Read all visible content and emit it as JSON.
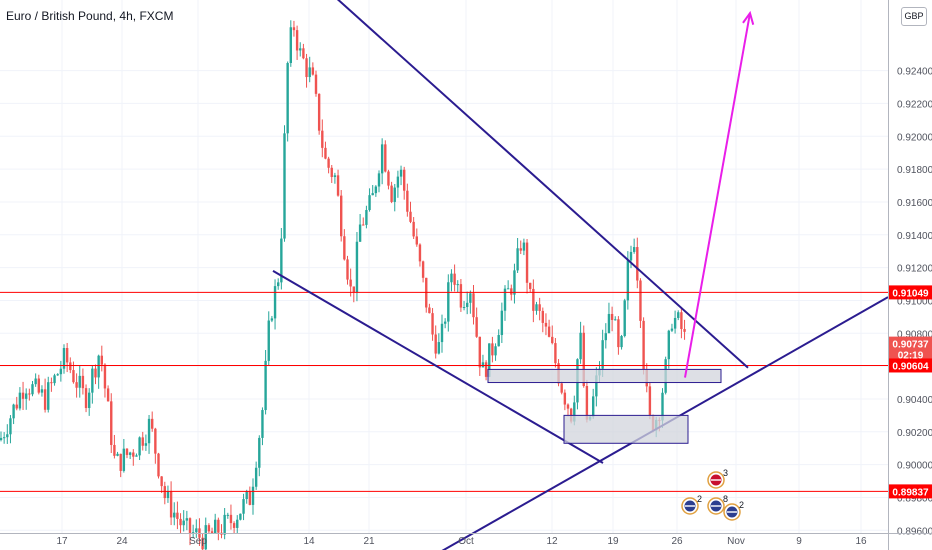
{
  "header": {
    "symbol": "Euro / British Pound",
    "interval": "4h",
    "exchange": "FXCM",
    "currency": "GBP"
  },
  "colors": {
    "up": "#26a69a",
    "down": "#ef5350",
    "trendline": "#2b1c90",
    "level": "#ff0000",
    "projection": "#e91ee9",
    "zone_fill": "#d1d4dc",
    "zone_stroke": "#2b1c90",
    "grid": "#f0f3fa",
    "axis_text": "#50535e"
  },
  "price_labels": [
    {
      "value": 0.91049,
      "text": "0.91049",
      "color": "#ff0000"
    },
    {
      "value": 0.90737,
      "text": "0.90737",
      "color": "#ef5350"
    },
    {
      "value": 0.9067,
      "text": "02:19",
      "color": "#ef5350"
    },
    {
      "value": 0.90604,
      "text": "0.90604",
      "color": "#ff0000"
    },
    {
      "value": 0.89837,
      "text": "0.89837",
      "color": "#ff0000"
    }
  ],
  "event_icons": [
    {
      "label": "3"
    },
    {
      "label": "2"
    },
    {
      "label": "8"
    },
    {
      "label": "2"
    }
  ],
  "chart_data": {
    "type": "candlestick",
    "title": "Euro / British Pound, 4h, FXCM",
    "ylim": [
      0.8948,
      0.9283
    ],
    "y_ticks": [
      0.896,
      0.898,
      0.9,
      0.902,
      0.904,
      0.906,
      0.908,
      0.91,
      0.912,
      0.914,
      0.916,
      0.918,
      0.92,
      0.922,
      0.924
    ],
    "x_ticks": [
      "17",
      "24",
      "Sep",
      "14",
      "21",
      "Oct",
      "12",
      "19",
      "26",
      "Nov",
      "9",
      "16"
    ],
    "grid": true,
    "horizontal_levels": [
      0.91049,
      0.90604,
      0.89837
    ],
    "price_path": [
      [
        0,
        0.9015
      ],
      [
        25,
        0.905
      ],
      [
        45,
        0.904
      ],
      [
        65,
        0.9065
      ],
      [
        85,
        0.904
      ],
      [
        100,
        0.907
      ],
      [
        115,
        0.9
      ],
      [
        135,
        0.901
      ],
      [
        150,
        0.9025
      ],
      [
        165,
        0.898
      ],
      [
        185,
        0.896
      ],
      [
        205,
        0.8955
      ],
      [
        230,
        0.8965
      ],
      [
        250,
        0.898
      ],
      [
        262,
        0.903
      ],
      [
        270,
        0.909
      ],
      [
        280,
        0.912
      ],
      [
        287,
        0.924
      ],
      [
        293,
        0.927
      ],
      [
        300,
        0.925
      ],
      [
        312,
        0.9235
      ],
      [
        325,
        0.9185
      ],
      [
        335,
        0.9175
      ],
      [
        345,
        0.913
      ],
      [
        352,
        0.91
      ],
      [
        360,
        0.9145
      ],
      [
        372,
        0.916
      ],
      [
        382,
        0.9195
      ],
      [
        392,
        0.9165
      ],
      [
        400,
        0.918
      ],
      [
        410,
        0.915
      ],
      [
        420,
        0.912
      ],
      [
        432,
        0.908
      ],
      [
        440,
        0.907
      ],
      [
        452,
        0.912
      ],
      [
        462,
        0.91
      ],
      [
        470,
        0.911
      ],
      [
        482,
        0.9055
      ],
      [
        492,
        0.907
      ],
      [
        505,
        0.91
      ],
      [
        515,
        0.9115
      ],
      [
        522,
        0.914
      ],
      [
        530,
        0.91
      ],
      [
        540,
        0.909
      ],
      [
        552,
        0.907
      ],
      [
        563,
        0.9045
      ],
      [
        572,
        0.903
      ],
      [
        580,
        0.908
      ],
      [
        587,
        0.902
      ],
      [
        595,
        0.9045
      ],
      [
        605,
        0.908
      ],
      [
        612,
        0.9095
      ],
      [
        620,
        0.906
      ],
      [
        628,
        0.912
      ],
      [
        634,
        0.914
      ],
      [
        640,
        0.91
      ],
      [
        645,
        0.905
      ],
      [
        650,
        0.9025
      ],
      [
        658,
        0.903
      ],
      [
        665,
        0.9055
      ],
      [
        672,
        0.909
      ],
      [
        680,
        0.9085
      ],
      [
        686,
        0.9074
      ]
    ],
    "annotations": [
      {
        "kind": "trendline",
        "from": [
          322,
          0.9292
        ],
        "to": [
          748,
          0.9059
        ]
      },
      {
        "kind": "trendline",
        "from": [
          273,
          0.9118
        ],
        "to": [
          603,
          0.9001
        ]
      },
      {
        "kind": "trendline",
        "from": [
          435,
          0.8945
        ],
        "to": [
          888,
          0.9102
        ]
      },
      {
        "kind": "zone",
        "from": [
          488,
          0.9058
        ],
        "to": [
          721,
          0.905
        ]
      },
      {
        "kind": "zone",
        "from": [
          564,
          0.903
        ],
        "to": [
          688,
          0.9013
        ]
      },
      {
        "kind": "projection_arrow",
        "from": [
          685,
          0.9053
        ],
        "to": [
          750,
          0.9275
        ]
      }
    ]
  }
}
